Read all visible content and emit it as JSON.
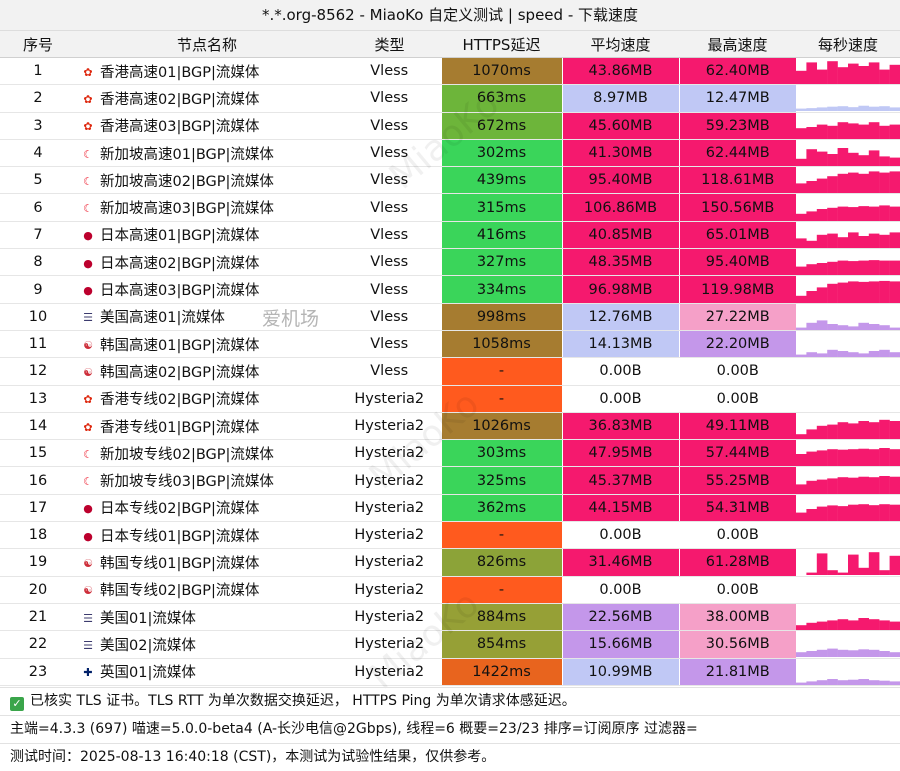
{
  "title": "*.*.org-8562 - MiaoKo 自定义测试 | speed - 下载速度",
  "columns": [
    "序号",
    "节点名称",
    "类型",
    "HTTPS延迟",
    "平均速度",
    "最高速度",
    "每秒速度"
  ],
  "colors": {
    "bad": "#ff5a1e",
    "slow_high_latency": "#a67c30",
    "mid_latency": "#6db53a",
    "good_latency": "#3ad55a",
    "speed_hot": "#f5196e",
    "speed_mid": "#c497ea",
    "speed_low": "#c0c8f5"
  },
  "rows": [
    {
      "id": "1",
      "flag": "HK",
      "name": "香港高速01|BGP|流媒体",
      "type": "Vless",
      "ms": "1070ms",
      "avg": "43.86MB",
      "max": "62.40MB",
      "ms_color": "#a67c30",
      "avg_color": "#f5196e",
      "max_color": "#f5196e",
      "spark": [
        0.55,
        0.9,
        0.6,
        0.95,
        0.7,
        0.85,
        0.75,
        0.9,
        0.6,
        0.8
      ],
      "spark_color": "#f5196e"
    },
    {
      "id": "2",
      "flag": "HK",
      "name": "香港高速02|BGP|流媒体",
      "type": "Vless",
      "ms": "663ms",
      "avg": "8.97MB",
      "max": "12.47MB",
      "ms_color": "#6db53a",
      "avg_color": "#c0c8f5",
      "max_color": "#c0c8f5",
      "spark": [
        0.1,
        0.12,
        0.15,
        0.18,
        0.2,
        0.16,
        0.22,
        0.18,
        0.2,
        0.15
      ],
      "spark_color": "#c0c8f5"
    },
    {
      "id": "3",
      "flag": "HK",
      "name": "香港高速03|BGP|流媒体",
      "type": "Vless",
      "ms": "672ms",
      "avg": "45.60MB",
      "max": "59.23MB",
      "ms_color": "#6db53a",
      "avg_color": "#f5196e",
      "max_color": "#f5196e",
      "spark": [
        0.45,
        0.5,
        0.6,
        0.55,
        0.7,
        0.65,
        0.6,
        0.7,
        0.55,
        0.6
      ],
      "spark_color": "#f5196e"
    },
    {
      "id": "4",
      "flag": "SG",
      "name": "新加坡高速01|BGP|流媒体",
      "type": "Vless",
      "ms": "302ms",
      "avg": "41.30MB",
      "max": "62.44MB",
      "ms_color": "#3ad55a",
      "avg_color": "#f5196e",
      "max_color": "#f5196e",
      "spark": [
        0.3,
        0.7,
        0.6,
        0.5,
        0.75,
        0.55,
        0.45,
        0.65,
        0.4,
        0.35
      ],
      "spark_color": "#f5196e"
    },
    {
      "id": "5",
      "flag": "SG",
      "name": "新加坡高速02|BGP|流媒体",
      "type": "Vless",
      "ms": "439ms",
      "avg": "95.40MB",
      "max": "118.61MB",
      "ms_color": "#3ad55a",
      "avg_color": "#f5196e",
      "max_color": "#f5196e",
      "spark": [
        0.4,
        0.5,
        0.6,
        0.7,
        0.8,
        0.85,
        0.8,
        0.9,
        0.85,
        0.9
      ],
      "spark_color": "#f5196e"
    },
    {
      "id": "6",
      "flag": "SG",
      "name": "新加坡高速03|BGP|流媒体",
      "type": "Vless",
      "ms": "315ms",
      "avg": "106.86MB",
      "max": "150.56MB",
      "ms_color": "#3ad55a",
      "avg_color": "#f5196e",
      "max_color": "#f5196e",
      "spark": [
        0.3,
        0.4,
        0.5,
        0.55,
        0.6,
        0.58,
        0.62,
        0.6,
        0.65,
        0.6
      ],
      "spark_color": "#f5196e"
    },
    {
      "id": "7",
      "flag": "JP",
      "name": "日本高速01|BGP|流媒体",
      "type": "Vless",
      "ms": "416ms",
      "avg": "40.85MB",
      "max": "65.01MB",
      "ms_color": "#3ad55a",
      "avg_color": "#f5196e",
      "max_color": "#f5196e",
      "spark": [
        0.4,
        0.3,
        0.55,
        0.6,
        0.45,
        0.65,
        0.5,
        0.6,
        0.55,
        0.65
      ],
      "spark_color": "#f5196e"
    },
    {
      "id": "8",
      "flag": "JP",
      "name": "日本高速02|BGP|流媒体",
      "type": "Vless",
      "ms": "327ms",
      "avg": "48.35MB",
      "max": "95.40MB",
      "ms_color": "#3ad55a",
      "avg_color": "#f5196e",
      "max_color": "#f5196e",
      "spark": [
        0.35,
        0.45,
        0.5,
        0.55,
        0.6,
        0.58,
        0.6,
        0.62,
        0.6,
        0.6
      ],
      "spark_color": "#f5196e"
    },
    {
      "id": "9",
      "flag": "JP",
      "name": "日本高速03|BGP|流媒体",
      "type": "Vless",
      "ms": "334ms",
      "avg": "96.98MB",
      "max": "119.98MB",
      "ms_color": "#3ad55a",
      "avg_color": "#f5196e",
      "max_color": "#f5196e",
      "spark": [
        0.3,
        0.5,
        0.65,
        0.8,
        0.85,
        0.9,
        0.88,
        0.9,
        0.92,
        0.9
      ],
      "spark_color": "#f5196e"
    },
    {
      "id": "10",
      "flag": "US",
      "name": "美国高速01|流媒体",
      "type": "Vless",
      "ms": "998ms",
      "avg": "12.76MB",
      "max": "27.22MB",
      "ms_color": "#a67c30",
      "avg_color": "#c0c8f5",
      "max_color": "#f5a0c8",
      "spark": [
        0.1,
        0.3,
        0.4,
        0.25,
        0.2,
        0.15,
        0.3,
        0.25,
        0.2,
        0.1
      ],
      "spark_color": "#c497ea"
    },
    {
      "id": "11",
      "flag": "KR",
      "name": "韩国高速01|BGP|流媒体",
      "type": "Vless",
      "ms": "1058ms",
      "avg": "14.13MB",
      "max": "22.20MB",
      "ms_color": "#a67c30",
      "avg_color": "#c0c8f5",
      "max_color": "#c497ea",
      "spark": [
        0.1,
        0.2,
        0.15,
        0.3,
        0.25,
        0.2,
        0.15,
        0.25,
        0.3,
        0.2
      ],
      "spark_color": "#c497ea"
    },
    {
      "id": "12",
      "flag": "KR",
      "name": "韩国高速02|BGP|流媒体",
      "type": "Vless",
      "ms": "-",
      "avg": "0.00B",
      "max": "0.00B",
      "ms_color": "#ff5a1e",
      "avg_color": "#ffffff",
      "max_color": "#ffffff",
      "spark": [],
      "spark_color": "#ffffff"
    },
    {
      "id": "13",
      "flag": "HK",
      "name": "香港专线02|BGP|流媒体",
      "type": "Hysteria2",
      "ms": "-",
      "avg": "0.00B",
      "max": "0.00B",
      "ms_color": "#ff5a1e",
      "avg_color": "#ffffff",
      "max_color": "#ffffff",
      "spark": [],
      "spark_color": "#ffffff"
    },
    {
      "id": "14",
      "flag": "HK",
      "name": "香港专线01|BGP|流媒体",
      "type": "Hysteria2",
      "ms": "1026ms",
      "avg": "36.83MB",
      "max": "49.11MB",
      "ms_color": "#a67c30",
      "avg_color": "#f5196e",
      "max_color": "#f5196e",
      "spark": [
        0.2,
        0.4,
        0.55,
        0.6,
        0.7,
        0.65,
        0.75,
        0.7,
        0.8,
        0.75
      ],
      "spark_color": "#f5196e"
    },
    {
      "id": "15",
      "flag": "SG",
      "name": "新加坡专线02|BGP|流媒体",
      "type": "Hysteria2",
      "ms": "303ms",
      "avg": "47.95MB",
      "max": "57.44MB",
      "ms_color": "#3ad55a",
      "avg_color": "#f5196e",
      "max_color": "#f5196e",
      "spark": [
        0.5,
        0.6,
        0.65,
        0.7,
        0.68,
        0.7,
        0.72,
        0.7,
        0.75,
        0.7
      ],
      "spark_color": "#f5196e"
    },
    {
      "id": "16",
      "flag": "SG",
      "name": "新加坡专线03|BGP|流媒体",
      "type": "Hysteria2",
      "ms": "325ms",
      "avg": "45.37MB",
      "max": "55.25MB",
      "ms_color": "#3ad55a",
      "avg_color": "#f5196e",
      "max_color": "#f5196e",
      "spark": [
        0.4,
        0.55,
        0.6,
        0.65,
        0.7,
        0.68,
        0.72,
        0.7,
        0.75,
        0.72
      ],
      "spark_color": "#f5196e"
    },
    {
      "id": "17",
      "flag": "JP",
      "name": "日本专线02|BGP|流媒体",
      "type": "Hysteria2",
      "ms": "362ms",
      "avg": "44.15MB",
      "max": "54.31MB",
      "ms_color": "#3ad55a",
      "avg_color": "#f5196e",
      "max_color": "#f5196e",
      "spark": [
        0.35,
        0.5,
        0.6,
        0.65,
        0.62,
        0.68,
        0.7,
        0.66,
        0.7,
        0.68
      ],
      "spark_color": "#f5196e"
    },
    {
      "id": "18",
      "flag": "JP",
      "name": "日本专线01|BGP|流媒体",
      "type": "Hysteria2",
      "ms": "-",
      "avg": "0.00B",
      "max": "0.00B",
      "ms_color": "#ff5a1e",
      "avg_color": "#ffffff",
      "max_color": "#ffffff",
      "spark": [],
      "spark_color": "#ffffff"
    },
    {
      "id": "19",
      "flag": "KR",
      "name": "韩国专线01|BGP|流媒体",
      "type": "Hysteria2",
      "ms": "826ms",
      "avg": "31.46MB",
      "max": "61.28MB",
      "ms_color": "#8ca338",
      "avg_color": "#f5196e",
      "max_color": "#f5196e",
      "spark": [
        0.0,
        0.1,
        0.9,
        0.2,
        0.1,
        0.85,
        0.3,
        0.95,
        0.2,
        0.8
      ],
      "spark_color": "#f5196e"
    },
    {
      "id": "20",
      "flag": "KR",
      "name": "韩国专线02|BGP|流媒体",
      "type": "Hysteria2",
      "ms": "-",
      "avg": "0.00B",
      "max": "0.00B",
      "ms_color": "#ff5a1e",
      "avg_color": "#ffffff",
      "max_color": "#ffffff",
      "spark": [],
      "spark_color": "#ffffff"
    },
    {
      "id": "21",
      "flag": "US",
      "name": "美国01|流媒体",
      "type": "Hysteria2",
      "ms": "884ms",
      "avg": "22.56MB",
      "max": "38.00MB",
      "ms_color": "#96a036",
      "avg_color": "#c497ea",
      "max_color": "#f5a0c8",
      "spark": [
        0.2,
        0.3,
        0.35,
        0.4,
        0.45,
        0.4,
        0.5,
        0.45,
        0.4,
        0.35
      ],
      "spark_color": "#f5196e"
    },
    {
      "id": "22",
      "flag": "US",
      "name": "美国02|流媒体",
      "type": "Hysteria2",
      "ms": "854ms",
      "avg": "15.66MB",
      "max": "30.56MB",
      "ms_color": "#96a036",
      "avg_color": "#c497ea",
      "max_color": "#f5a0c8",
      "spark": [
        0.2,
        0.25,
        0.3,
        0.35,
        0.3,
        0.28,
        0.32,
        0.3,
        0.25,
        0.2
      ],
      "spark_color": "#c497ea"
    },
    {
      "id": "23",
      "flag": "UK",
      "name": "英国01|流媒体",
      "type": "Hysteria2",
      "ms": "1422ms",
      "avg": "10.99MB",
      "max": "21.81MB",
      "ms_color": "#e8641e",
      "avg_color": "#c0c8f5",
      "max_color": "#c497ea",
      "spark": [
        0.1,
        0.15,
        0.2,
        0.25,
        0.2,
        0.22,
        0.25,
        0.2,
        0.18,
        0.15
      ],
      "spark_color": "#c497ea"
    }
  ],
  "flags": {
    "HK": "✿",
    "SG": "☾",
    "JP": "●",
    "US": "☰",
    "KR": "☯",
    "UK": "✚"
  },
  "flag_colors": {
    "HK": "#de2910",
    "SG": "#ee2536",
    "JP": "#bc002d",
    "US": "#3c3b6e",
    "KR": "#cd2e3a",
    "UK": "#012169"
  },
  "footer": {
    "line1": "已核实 TLS 证书。TLS RTT 为单次数据交换延迟， HTTPS Ping 为单次请求体感延迟。",
    "line2": "主端=4.3.3 (697) 喵速=5.0.0-beta4 (A-长沙电信@2Gbps), 线程=6 概要=23/23 排序=订阅原序 过滤器=",
    "line3": "测试时间：2025-08-13 16:40:18 (CST)，本测试为试验性结果，仅供参考。"
  },
  "watermark": {
    "text1": "MiaoKo",
    "text2": "爱机场"
  }
}
